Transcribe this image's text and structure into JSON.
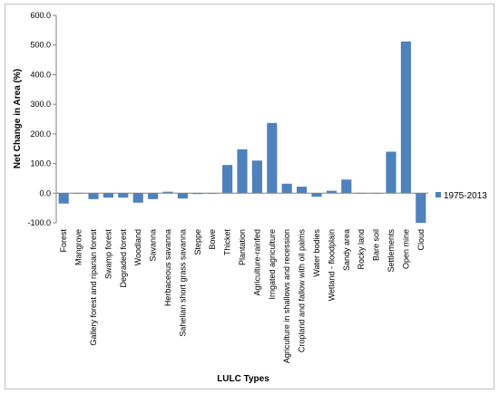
{
  "chart_data": {
    "type": "bar",
    "xlabel": "LULC Types",
    "ylabel": "Net Change in Area (%)",
    "ylim": [
      -100,
      600
    ],
    "yticks": [
      "-100.0",
      "0.0",
      "100.0",
      "200.0",
      "300.0",
      "400.0",
      "500.0",
      "600.0"
    ],
    "ytick_values": [
      -100,
      0,
      100,
      200,
      300,
      400,
      500,
      600
    ],
    "grid": false,
    "legend_position": "right",
    "bar_color": "#4f81bd",
    "categories": [
      "Forest",
      "Mangrove",
      "Gallery forest and riparian forest",
      "Swamp forest",
      "Degraded forest",
      "Woodland",
      "Savanna",
      "Herbaceous savanna",
      "Sahelian short grass savanna",
      "Steppe",
      "Bowe",
      "Thicket",
      "Plantation",
      "Agriculture-rainfed",
      "Irrigated agriculture",
      "Agriculture in shallows and recession",
      "Cropland and fallow with oil palms",
      "Water bodies",
      "Wetland - floodplain",
      "Sandy area",
      "Rocky land",
      "Bare soil",
      "Settlements",
      "Open mine",
      "Cloud"
    ],
    "series": [
      {
        "name": "1975-2013",
        "values": [
          -35,
          0,
          -20,
          -15,
          -15,
          -32,
          -20,
          5,
          -18,
          -3,
          0,
          95,
          148,
          110,
          237,
          32,
          22,
          -12,
          8,
          46,
          0,
          0,
          140,
          512,
          -100
        ]
      }
    ]
  }
}
